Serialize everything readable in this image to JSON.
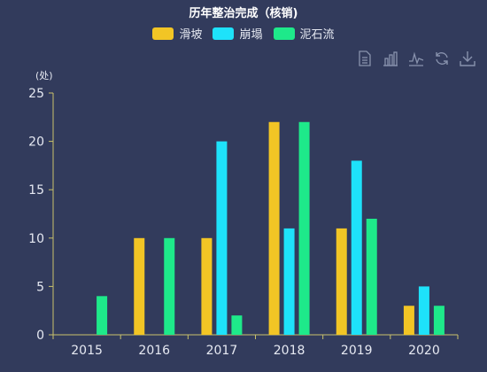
{
  "legend_order": [
    "滑坡",
    "崩塌",
    "泥石流"
  ],
  "toolbox": [
    "data-view-icon",
    "bar-chart-icon",
    "line-chart-icon",
    "restore-icon",
    "download-icon"
  ],
  "chart_data": {
    "type": "bar",
    "title": "历年整治完成（核销)",
    "ylabel": "(处)",
    "xlabel": "",
    "categories": [
      "2015",
      "2016",
      "2017",
      "2018",
      "2019",
      "2020"
    ],
    "ylim": [
      0,
      25
    ],
    "yticks": [
      0,
      5,
      10,
      15,
      20,
      25
    ],
    "legend_position": "top-center",
    "grid": false,
    "series": [
      {
        "name": "滑坡",
        "color": "#f2c525",
        "values": [
          0,
          10,
          10,
          22,
          11,
          3
        ]
      },
      {
        "name": "崩塌",
        "color": "#1ee2fa",
        "values": [
          0,
          0,
          20,
          11,
          18,
          5
        ]
      },
      {
        "name": "泥石流",
        "color": "#1ee98a",
        "values": [
          4,
          10,
          2,
          22,
          12,
          3
        ]
      }
    ]
  }
}
